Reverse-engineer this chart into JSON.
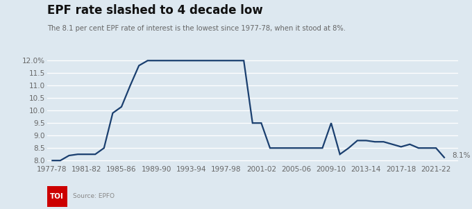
{
  "title": "EPF rate slashed to 4 decade low",
  "subtitle": "The 8.1 per cent EPF rate of interest is the lowest since 1977-78, when it stood at 8%.",
  "source": "Source: EPFO",
  "background_color": "#dde8f0",
  "plot_bg_color": "#dde8f0",
  "line_color": "#1a3f6f",
  "line_width": 1.6,
  "annotation_text": "8.1%",
  "x_labels": [
    "1977-78",
    "1981-82",
    "1985-86",
    "1989-90",
    "1993-94",
    "1997-98",
    "2001-02",
    "2005-06",
    "2009-10",
    "2013-14",
    "2017-18",
    "2021-22"
  ],
  "ylim": [
    7.9,
    12.25
  ],
  "yticks": [
    8.0,
    8.5,
    9.0,
    9.5,
    10.0,
    10.5,
    11.0,
    11.5,
    12.0
  ],
  "data_x": [
    1977,
    1978,
    1979,
    1980,
    1981,
    1982,
    1983,
    1984,
    1985,
    1986,
    1987,
    1988,
    1989,
    1990,
    1991,
    1992,
    1993,
    1994,
    1995,
    1996,
    1997,
    1998,
    1999,
    2000,
    2001,
    2002,
    2003,
    2004,
    2005,
    2006,
    2007,
    2008,
    2009,
    2010,
    2011,
    2012,
    2013,
    2014,
    2015,
    2016,
    2017,
    2018,
    2019,
    2020,
    2021,
    2022
  ],
  "data_y": [
    8.0,
    8.0,
    8.2,
    8.25,
    8.25,
    8.25,
    8.5,
    9.9,
    10.15,
    11.0,
    11.8,
    12.0,
    12.0,
    12.0,
    12.0,
    12.0,
    12.0,
    12.0,
    12.0,
    12.0,
    12.0,
    12.0,
    12.0,
    9.5,
    9.5,
    8.5,
    8.5,
    8.5,
    8.5,
    8.5,
    8.5,
    8.5,
    9.5,
    8.25,
    8.5,
    8.8,
    8.8,
    8.75,
    8.75,
    8.65,
    8.55,
    8.65,
    8.5,
    8.5,
    8.5,
    8.1
  ]
}
